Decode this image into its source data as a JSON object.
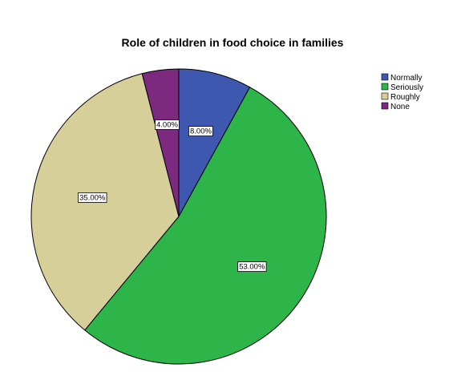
{
  "chart_data": {
    "type": "pie",
    "title": "Role of children in food choice in families",
    "categories": [
      "Normally",
      "Seriously",
      "Roughly",
      "None"
    ],
    "values": [
      8.0,
      53.0,
      35.0,
      4.0
    ],
    "labels": [
      "8.00%",
      "53.00%",
      "35.00%",
      "4.00%"
    ],
    "colors": [
      "#3e58b0",
      "#2db54a",
      "#d6cf9a",
      "#7b2a7f"
    ],
    "start_angle_deg": 0,
    "direction": "clockwise",
    "legend": {
      "placement": "top-right",
      "entries": [
        "Normally",
        "Seriously",
        "Roughly",
        "None"
      ]
    }
  }
}
